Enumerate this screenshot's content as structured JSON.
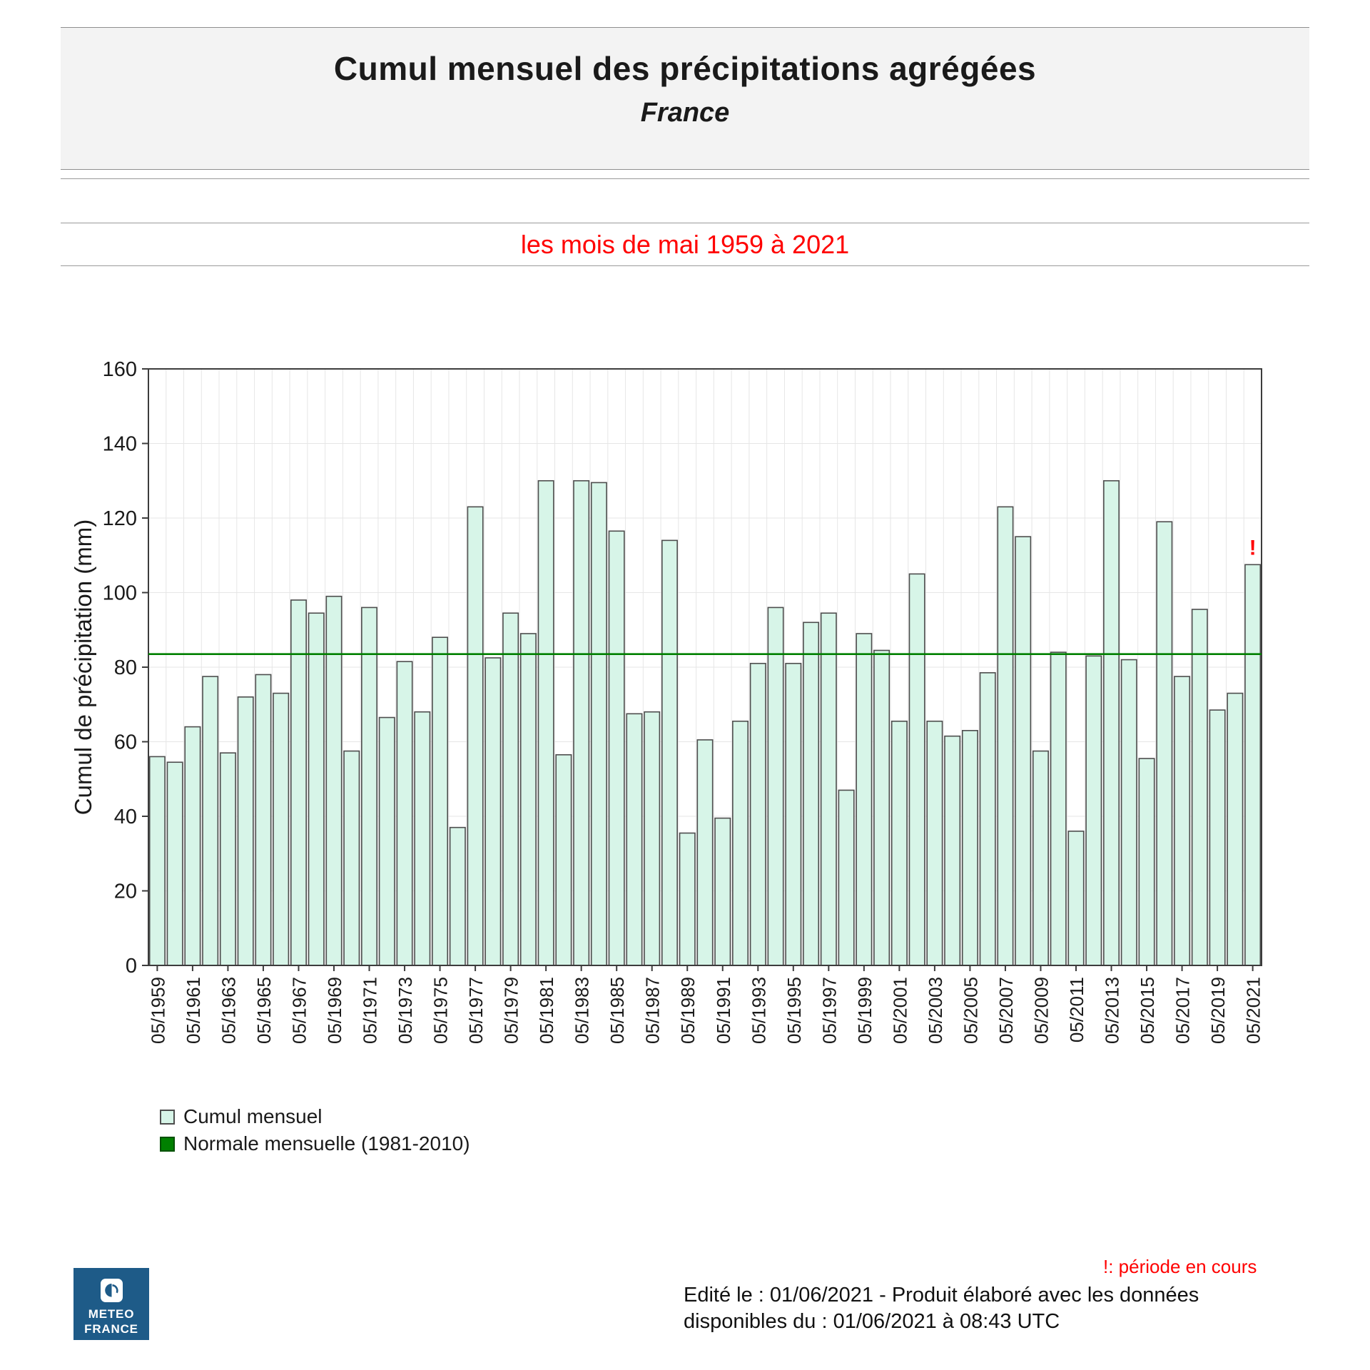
{
  "header": {
    "title": "Cumul mensuel des précipitations agrégées",
    "subtitle": "France"
  },
  "period_banner": "les mois de mai 1959 à 2021",
  "chart_data": {
    "type": "bar",
    "title": "Cumul mensuel des précipitations agrégées - France - les mois de mai 1959 à 2021",
    "xlabel": "",
    "ylabel": "Cumul de précipitation (mm)",
    "ylim": [
      0,
      160
    ],
    "ytick_step": 20,
    "grid": "on",
    "legend_position": "bottom-left",
    "categories": [
      "05/1959",
      "05/1960",
      "05/1961",
      "05/1962",
      "05/1963",
      "05/1964",
      "05/1965",
      "05/1966",
      "05/1967",
      "05/1968",
      "05/1969",
      "05/1970",
      "05/1971",
      "05/1972",
      "05/1973",
      "05/1974",
      "05/1975",
      "05/1976",
      "05/1977",
      "05/1978",
      "05/1979",
      "05/1980",
      "05/1981",
      "05/1982",
      "05/1983",
      "05/1984",
      "05/1985",
      "05/1986",
      "05/1987",
      "05/1988",
      "05/1989",
      "05/1990",
      "05/1991",
      "05/1992",
      "05/1993",
      "05/1994",
      "05/1995",
      "05/1996",
      "05/1997",
      "05/1998",
      "05/1999",
      "05/2000",
      "05/2001",
      "05/2002",
      "05/2003",
      "05/2004",
      "05/2005",
      "05/2006",
      "05/2007",
      "05/2008",
      "05/2009",
      "05/2010",
      "05/2011",
      "05/2012",
      "05/2013",
      "05/2014",
      "05/2015",
      "05/2016",
      "05/2017",
      "05/2018",
      "05/2019",
      "05/2020",
      "05/2021"
    ],
    "values": [
      56,
      54.5,
      64,
      77.5,
      57,
      72,
      78,
      73,
      98,
      94.5,
      99,
      57.5,
      96,
      66.5,
      81.5,
      68,
      88,
      37,
      123,
      82.5,
      94.5,
      89,
      130,
      56.5,
      130,
      129.5,
      116.5,
      67.5,
      68,
      114,
      35.5,
      60.5,
      39.5,
      65.5,
      81,
      96,
      81,
      92,
      94.5,
      47,
      89,
      84.5,
      65.5,
      105,
      65.5,
      61.5,
      63,
      78.5,
      123,
      115,
      57.5,
      84,
      36,
      83,
      130,
      82,
      55.5,
      119,
      77.5,
      95.5,
      68.5,
      73,
      107.5
    ],
    "series_name": "Cumul mensuel",
    "normal_line": {
      "label": "Normale mensuelle (1981-2010)",
      "value": 83.5
    },
    "xtick_every": 2,
    "current_period_marker": {
      "category": "05/2021",
      "symbol": "!"
    }
  },
  "legend": [
    {
      "label": "Cumul mensuel",
      "swatch": "bar"
    },
    {
      "label": "Normale mensuelle (1981-2010)",
      "swatch": "line"
    }
  ],
  "footnote": "!: période en cours",
  "footer": {
    "line1": "Edité le : 01/06/2021 - Produit élaboré avec les données",
    "line2": "disponibles du : 01/06/2021 à 08:43 UTC"
  },
  "logo": {
    "line1": "METEO",
    "line2": "FRANCE"
  },
  "colors": {
    "bar_fill": "#d7f5e8",
    "bar_border": "#4d4d4d",
    "normal_line": "#008000",
    "accent_red": "#ff0000",
    "header_bg": "#f3f3f3",
    "gridline": "#e6e6e6",
    "axis": "#3c3c3c",
    "logo_bg": "#1e5b88"
  }
}
